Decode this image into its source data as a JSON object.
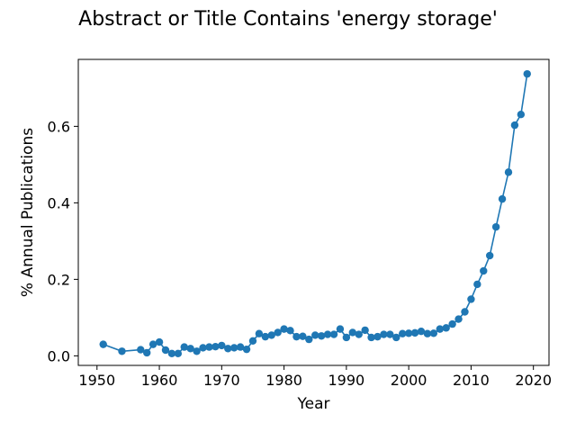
{
  "chart_data": {
    "type": "line",
    "title": "Abstract or Title Contains 'energy storage'",
    "xlabel": "Year",
    "ylabel": "% Annual Publications",
    "xlim": [
      1947,
      2022.5
    ],
    "ylim": [
      -0.025,
      0.775
    ],
    "xticks": [
      1950,
      1960,
      1970,
      1980,
      1990,
      2000,
      2010,
      2020
    ],
    "xtick_labels": [
      "1950",
      "1960",
      "1970",
      "1980",
      "1990",
      "2000",
      "2010",
      "2020"
    ],
    "yticks": [
      0.0,
      0.2,
      0.4,
      0.6
    ],
    "ytick_labels": [
      "0.0",
      "0.2",
      "0.4",
      "0.6"
    ],
    "grid": false,
    "series": [
      {
        "name": "energy storage",
        "color": "#1f77b4",
        "x": [
          1951,
          1954,
          1957,
          1958,
          1959,
          1960,
          1961,
          1962,
          1963,
          1964,
          1965,
          1966,
          1967,
          1968,
          1969,
          1970,
          1971,
          1972,
          1973,
          1974,
          1975,
          1976,
          1977,
          1978,
          1979,
          1980,
          1981,
          1982,
          1983,
          1984,
          1985,
          1986,
          1987,
          1988,
          1989,
          1990,
          1991,
          1992,
          1993,
          1994,
          1995,
          1996,
          1997,
          1998,
          1999,
          2000,
          2001,
          2002,
          2003,
          2004,
          2005,
          2006,
          2007,
          2008,
          2009,
          2010,
          2011,
          2012,
          2013,
          2014,
          2015,
          2016,
          2017,
          2018,
          2019
        ],
        "y": [
          0.03,
          0.012,
          0.016,
          0.008,
          0.03,
          0.036,
          0.015,
          0.006,
          0.006,
          0.023,
          0.019,
          0.012,
          0.021,
          0.023,
          0.024,
          0.027,
          0.019,
          0.021,
          0.023,
          0.017,
          0.039,
          0.058,
          0.05,
          0.054,
          0.061,
          0.07,
          0.066,
          0.05,
          0.051,
          0.043,
          0.054,
          0.052,
          0.056,
          0.056,
          0.07,
          0.048,
          0.061,
          0.056,
          0.067,
          0.048,
          0.05,
          0.056,
          0.056,
          0.048,
          0.058,
          0.059,
          0.06,
          0.064,
          0.058,
          0.059,
          0.07,
          0.073,
          0.083,
          0.096,
          0.115,
          0.148,
          0.187,
          0.222,
          0.262,
          0.337,
          0.41,
          0.48,
          0.603,
          0.631,
          0.737
        ]
      }
    ]
  }
}
